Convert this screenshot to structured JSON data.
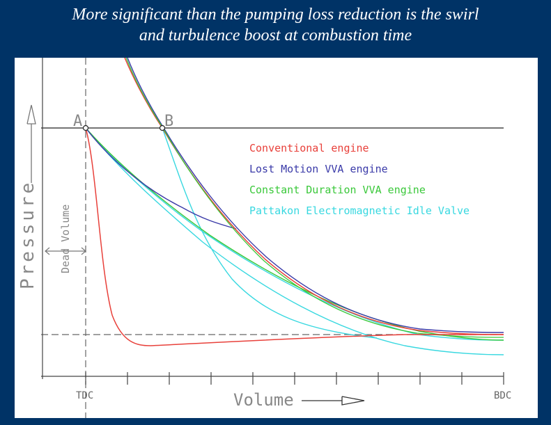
{
  "slide": {
    "title_line1": "More significant than the pumping loss reduction is the swirl",
    "title_line2": "and turbulence boost at combustion time"
  },
  "diagram": {
    "y_axis_label": "Pressure",
    "x_axis_label": "Volume",
    "dead_volume_label": "Dead Volume",
    "point_a": "A",
    "point_b": "B",
    "x_left_label": "TDC",
    "x_right_label": "BDC",
    "legend": [
      {
        "label": "Conventional engine",
        "color": "#e8403a"
      },
      {
        "label": "Lost Motion VVA engine",
        "color": "#3a3aa8"
      },
      {
        "label": "Constant Duration VVA engine",
        "color": "#3ac83a"
      },
      {
        "label": "Pattakon Electromagnetic Idle Valve",
        "color": "#38d8e0"
      }
    ]
  }
}
